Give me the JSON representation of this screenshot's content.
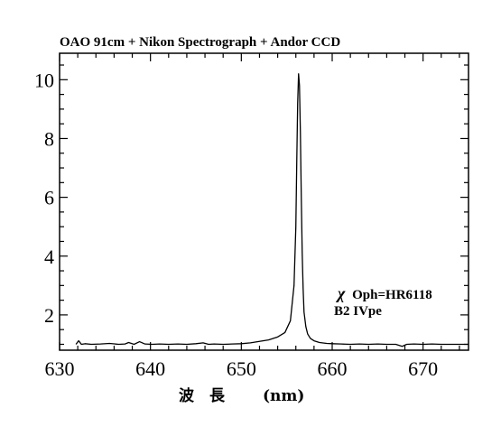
{
  "chart_data": {
    "type": "line",
    "title": "OAO 91cm + Nikon Spectrograph + Andor CCD",
    "xlabel_cjk": "波　長",
    "xlabel_unit": "(nm)",
    "ylabel": "",
    "xlim": [
      630,
      675
    ],
    "ylim": [
      0.8,
      10.9
    ],
    "x_ticks": [
      630,
      640,
      650,
      660,
      670
    ],
    "x_tick_labels": [
      "630",
      "640",
      "650",
      "660",
      "670"
    ],
    "y_ticks": [
      2,
      4,
      6,
      8,
      10
    ],
    "y_tick_labels": [
      "2",
      "4",
      "6",
      "8",
      "10"
    ],
    "grid": false,
    "legend": "none",
    "annotation": {
      "symbol": "χ",
      "line1": "Oph=HR6118",
      "line2": "B2 IVpe"
    },
    "series": [
      {
        "x": [
          631.8,
          632.1,
          632.4,
          632.8,
          633.5,
          634.5,
          635.5,
          636.5,
          637.2,
          637.6,
          638.2,
          638.8,
          639.4,
          640.2,
          641.0,
          642.0,
          643.0,
          644.0,
          645.0,
          645.8,
          646.4,
          647.0,
          648.0,
          649.0,
          650.0,
          651.0,
          652.0,
          653.0,
          654.0,
          654.8,
          655.4,
          655.8,
          656.0,
          656.1,
          656.2,
          656.3,
          656.4,
          656.5,
          656.6,
          656.7,
          656.8,
          656.9,
          657.1,
          657.3,
          657.6,
          658.0,
          658.6,
          659.4,
          660.0,
          661.0,
          662.0,
          663.0,
          664.0,
          665.0,
          666.0,
          667.0,
          667.7,
          668.2,
          669.0,
          670.0,
          671.0,
          672.0,
          673.0,
          675.0
        ],
        "y": [
          1.0,
          1.12,
          1.0,
          1.02,
          1.0,
          1.01,
          1.03,
          1.0,
          1.01,
          1.06,
          1.0,
          1.09,
          1.01,
          1.0,
          1.01,
          1.0,
          1.01,
          1.0,
          1.02,
          1.05,
          1.0,
          1.01,
          1.0,
          1.01,
          1.02,
          1.05,
          1.1,
          1.15,
          1.25,
          1.4,
          1.8,
          3.0,
          5.0,
          7.2,
          9.2,
          10.2,
          9.8,
          8.2,
          6.0,
          4.1,
          2.9,
          2.1,
          1.6,
          1.35,
          1.2,
          1.12,
          1.06,
          1.03,
          1.02,
          1.01,
          1.0,
          1.01,
          1.0,
          1.01,
          1.0,
          1.0,
          0.93,
          1.0,
          1.01,
          1.0,
          1.01,
          1.0,
          1.0,
          1.0
        ]
      }
    ]
  }
}
